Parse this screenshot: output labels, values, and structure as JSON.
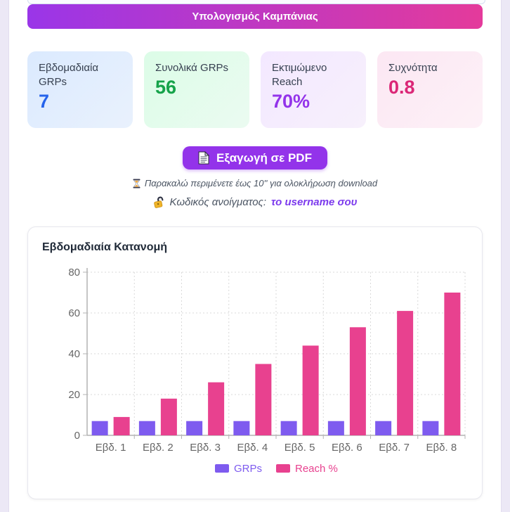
{
  "banner": {
    "title": "Υπολογισμός Καμπάνιας"
  },
  "stats": [
    {
      "label": "Εβδομαδιαία GRPs",
      "value": "7",
      "bg": "linear-gradient(135deg,#dbeafe,#e9f1fd)",
      "color": "#2563eb"
    },
    {
      "label": "Συνολικά GRPs",
      "value": "56",
      "bg": "linear-gradient(135deg,#dcfce7,#ebfbf1)",
      "color": "#16a34a"
    },
    {
      "label": "Εκτιμώμενο Reach",
      "value": "70%",
      "bg": "linear-gradient(135deg,#f3e8ff,#f7f0fc)",
      "color": "#9333ea"
    },
    {
      "label": "Συχνότητα",
      "value": "0.8",
      "bg": "linear-gradient(135deg,#fce7f3,#fdf1f7)",
      "color": "#db2777"
    }
  ],
  "export": {
    "button_label": "Εξαγωγή σε PDF",
    "icon": "pdf-document-icon"
  },
  "notes": {
    "wait_icon": "hourglass-icon",
    "wait_note": "Παρακαλώ περιμένετε έως 10'' για ολοκλήρωση download",
    "password_icon": "open-lock-icon",
    "password_label": "Κωδικός ανοίγματος:",
    "password_value": "το username σου"
  },
  "chart_data": {
    "type": "bar",
    "title": "Εβδομαδιαία Κατανομή",
    "categories": [
      "Εβδ. 1",
      "Εβδ. 2",
      "Εβδ. 3",
      "Εβδ. 4",
      "Εβδ. 5",
      "Εβδ. 6",
      "Εβδ. 7",
      "Εβδ. 8"
    ],
    "series": [
      {
        "name": "GRPs",
        "color": "#7e5bef",
        "values": [
          7,
          7,
          7,
          7,
          7,
          7,
          7,
          7
        ]
      },
      {
        "name": "Reach %",
        "color": "#e8418f",
        "values": [
          9,
          18,
          26,
          35,
          44,
          53,
          61,
          70
        ]
      }
    ],
    "ylim": [
      0,
      80
    ],
    "yticks": [
      0,
      20,
      40,
      60,
      80
    ],
    "grid": "dashed",
    "legend_position": "bottom",
    "axis_color": "#b3b3b3",
    "grid_color": "#d9d9d9",
    "tick_label_color": "#666666"
  }
}
